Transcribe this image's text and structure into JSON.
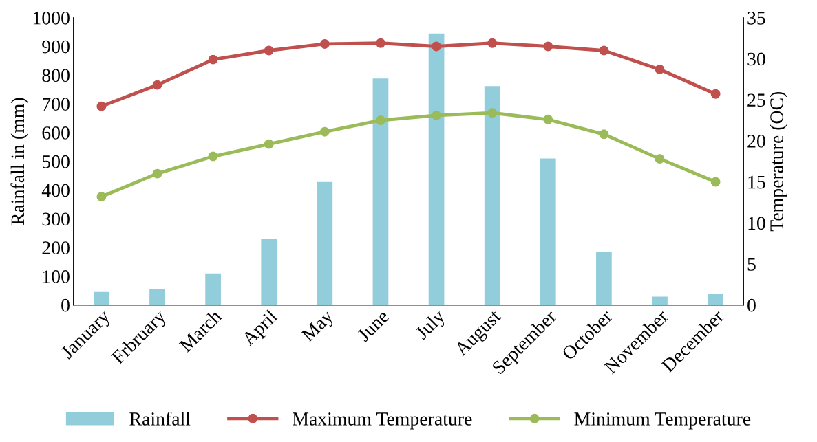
{
  "chart_data": {
    "type": "bar",
    "ylabel": "Rainfall in (mm)",
    "y2label": "Temperature (OC)",
    "categories": [
      "January",
      "Frbruary",
      "March",
      "April",
      "May",
      "June",
      "July",
      "August",
      "September",
      "October",
      "November",
      "December"
    ],
    "series": [
      {
        "name": "Rainfall",
        "color": "#92cddc",
        "values": [
          45,
          55,
          110,
          231,
          428,
          788,
          945,
          762,
          510,
          185,
          29,
          38
        ]
      },
      {
        "name": "Maximum Temperature",
        "type": "line",
        "axis": "y2",
        "color": "#c0504d",
        "marker": "circle",
        "values": [
          24.2,
          26.8,
          29.9,
          31.0,
          31.8,
          31.9,
          31.5,
          31.9,
          31.5,
          31.0,
          28.7,
          25.7
        ]
      },
      {
        "name": "Minimum Temperature",
        "type": "line",
        "axis": "y2",
        "color": "#9bbb59",
        "marker": "circle",
        "values": [
          13.2,
          16.0,
          18.1,
          19.6,
          21.1,
          22.5,
          23.1,
          23.4,
          22.6,
          20.8,
          17.8,
          15.0
        ]
      }
    ],
    "ylim": [
      0,
      1000
    ],
    "yticks": [
      0,
      100,
      200,
      300,
      400,
      500,
      600,
      700,
      800,
      900,
      1000
    ],
    "y2lim": [
      0,
      35
    ],
    "y2ticks": [
      0,
      5,
      10,
      15,
      20,
      25,
      30,
      35
    ],
    "grid": false,
    "legend": "bottom"
  }
}
